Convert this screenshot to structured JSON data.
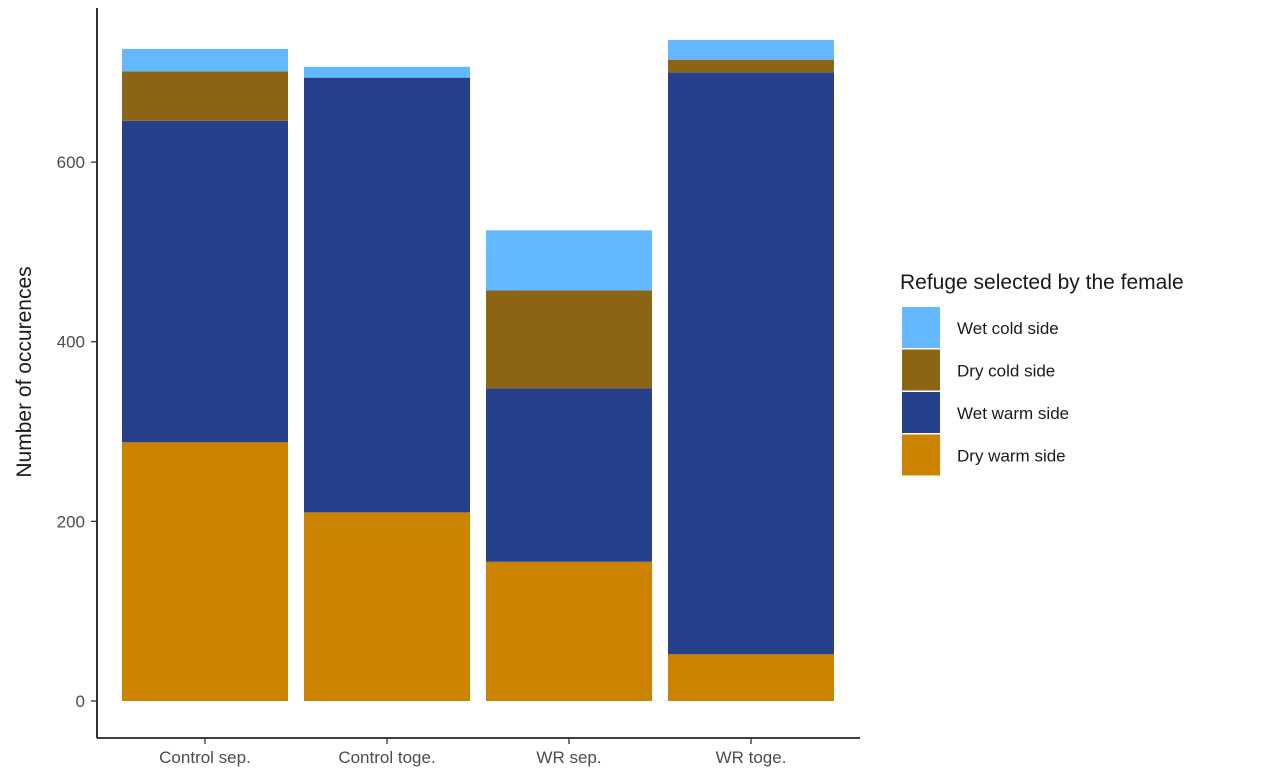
{
  "chart_data": {
    "type": "bar",
    "stacked": true,
    "categories": [
      "Control sep.",
      "Control toge.",
      "WR sep.",
      "WR toge."
    ],
    "ylabel": "Number of occurences",
    "xlabel": "",
    "ylim": [
      0,
      730
    ],
    "yticks": [
      0,
      200,
      400,
      600
    ],
    "grid": false,
    "legend": {
      "title": "Refuge selected by the female",
      "position": "right",
      "order": [
        "Wet cold side",
        "Dry cold side",
        "Wet warm side",
        "Dry warm side"
      ]
    },
    "series": [
      {
        "name": "Dry warm side",
        "color": "#CC8400",
        "values": [
          288,
          210,
          155,
          52
        ]
      },
      {
        "name": "Wet warm side",
        "color": "#26408B",
        "values": [
          358,
          484,
          193,
          648
        ]
      },
      {
        "name": "Dry cold side",
        "color": "#8B6515",
        "values": [
          55,
          0,
          109,
          14
        ]
      },
      {
        "name": "Wet cold side",
        "color": "#63B8FF",
        "values": [
          25,
          12,
          67,
          22
        ]
      }
    ]
  }
}
